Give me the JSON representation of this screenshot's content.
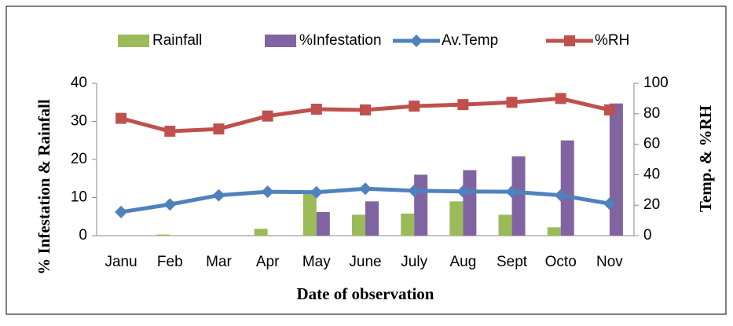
{
  "chart_data": {
    "type": "bar_line",
    "x_label": "Date of observation",
    "y_label": "% Infestation & Rainfall",
    "y2_label": "Temp. & %RH",
    "categories": [
      "Janu",
      "Feb",
      "Mar",
      "Apr",
      "May",
      "June",
      "July",
      "Aug",
      "Sept",
      "Octo",
      "Nov"
    ],
    "ylim": [
      0,
      40
    ],
    "yticks": [
      0,
      10,
      20,
      30,
      40
    ],
    "y2lim": [
      0,
      100
    ],
    "y2ticks": [
      0,
      20,
      40,
      60,
      80,
      100
    ],
    "legend": "top",
    "series": [
      {
        "name": "Rainfall",
        "kind": "bar",
        "color": "#9bbb59",
        "values": [
          0,
          0.3,
          0,
          1.8,
          11.2,
          5.5,
          5.8,
          9,
          5.5,
          2.2,
          0
        ]
      },
      {
        "name": "%Infestation",
        "kind": "bar",
        "color": "#8064a2",
        "values": [
          0,
          0,
          0,
          0,
          6.2,
          9,
          16,
          17.2,
          20.8,
          25,
          34.7
        ]
      },
      {
        "name": "Av.Temp",
        "kind": "line",
        "axis": "y2",
        "marker": "diamond",
        "color": "#4f81bd",
        "values": [
          15.5,
          20.5,
          26.5,
          28.8,
          28.5,
          30.8,
          29.5,
          29,
          28.8,
          26.5,
          21
        ]
      },
      {
        "name": "%RH",
        "kind": "line",
        "axis": "y2",
        "marker": "square",
        "color": "#c0504d",
        "values": [
          77,
          68.5,
          70,
          78.5,
          83,
          82.5,
          85,
          86,
          87.5,
          90,
          82.5
        ]
      }
    ]
  }
}
